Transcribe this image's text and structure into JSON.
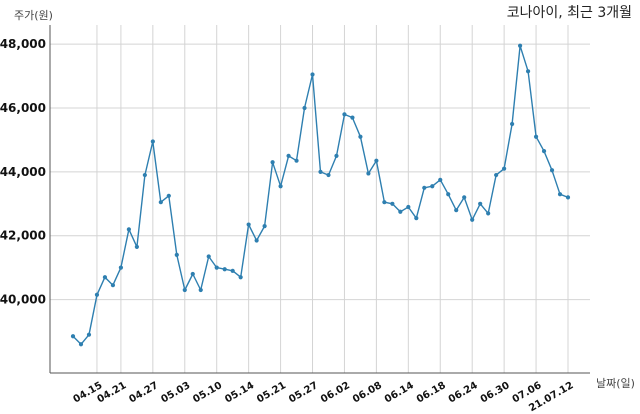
{
  "chart_data": {
    "type": "line",
    "title": "코나아이, 최근 3개월",
    "ylabel": "주가(원)",
    "xlabel": "날짜(일)",
    "ylim": [
      37700,
      48600
    ],
    "yticks": [
      40000,
      42000,
      44000,
      46000,
      48000
    ],
    "ytick_labels": [
      "40,000",
      "42,000",
      "44,000",
      "46,000",
      "48,000"
    ],
    "xtick_labels": [
      "04.15",
      "04.21",
      "04.27",
      "05.03",
      "05.10",
      "05.14",
      "05.21",
      "05.27",
      "06.02",
      "06.08",
      "06.14",
      "06.18",
      "06.24",
      "06.30",
      "07.06",
      "21.07.12"
    ],
    "xtick_indices": [
      3,
      6,
      10,
      14,
      18,
      22,
      26,
      30,
      34,
      38,
      42,
      46,
      50,
      54,
      58,
      62
    ],
    "grid": true,
    "line_color": "#2e7fb0",
    "series": [
      {
        "values": [
          38850,
          38600,
          38900,
          40150,
          40700,
          40450,
          41000,
          42200,
          41650,
          43900,
          44950,
          43050,
          43250,
          41400,
          40300,
          40800,
          40300,
          41350,
          41000,
          40950,
          40900,
          40700,
          42350,
          41850,
          42300,
          44300,
          43550,
          44500,
          44350,
          46000,
          47050,
          44000,
          43900,
          44500,
          45800,
          45700,
          45100,
          43950,
          44350,
          43050,
          43000,
          42750,
          42900,
          42550,
          43500,
          43550,
          43750,
          43300,
          42800,
          43200,
          42500,
          43000,
          42700,
          43900,
          44100,
          45500,
          47950,
          47150,
          45100,
          44650,
          44050,
          43300,
          43200
        ]
      }
    ]
  }
}
